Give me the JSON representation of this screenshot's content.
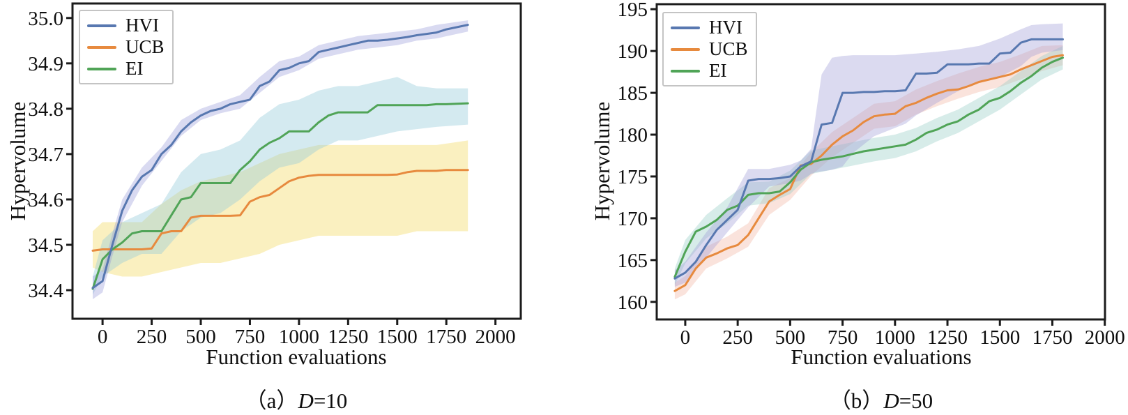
{
  "chart_data": [
    {
      "id": "a",
      "type": "line",
      "xlabel": "Function evaluations",
      "ylabel": "Hypervolume",
      "caption": {
        "prefix": "（a）",
        "variable": "D",
        "suffix": "=10"
      },
      "legend_position": "upper left",
      "grid": false,
      "xlim": [
        -153,
        2129
      ],
      "ylim": [
        34.337,
        35.032
      ],
      "xticks": {
        "values": [
          0,
          250,
          500,
          750,
          1000,
          1250,
          1500,
          1750,
          2000
        ],
        "labels": [
          "0",
          "250",
          "500",
          "750",
          "1000",
          "1250",
          "1500",
          "1750",
          "2000"
        ]
      },
      "yticks": {
        "values": [
          34.4,
          34.5,
          34.6,
          34.7,
          34.8,
          34.9,
          35.0
        ],
        "labels": [
          "34.4",
          "34.5",
          "34.6",
          "34.7",
          "34.8",
          "34.9",
          "35.0"
        ]
      },
      "x": [
        -50,
        0,
        50,
        100,
        150,
        200,
        250,
        300,
        350,
        400,
        450,
        500,
        550,
        600,
        650,
        700,
        750,
        800,
        850,
        900,
        950,
        1000,
        1050,
        1100,
        1150,
        1200,
        1250,
        1300,
        1350,
        1400,
        1450,
        1500,
        1550,
        1600,
        1650,
        1700,
        1750,
        1860
      ],
      "series": [
        {
          "name": "HVI",
          "color": "#5878b0",
          "band_color": "rgba(145,150,216,0.35)",
          "y": [
            34.405,
            34.42,
            34.5,
            34.575,
            34.62,
            34.65,
            34.665,
            34.7,
            34.72,
            34.75,
            34.77,
            34.785,
            34.795,
            34.8,
            34.81,
            34.815,
            34.82,
            34.85,
            34.86,
            34.885,
            34.89,
            34.9,
            34.905,
            34.925,
            34.93,
            34.935,
            34.94,
            34.945,
            34.95,
            34.95,
            34.952,
            34.955,
            34.958,
            34.962,
            34.965,
            34.968,
            34.975,
            34.985
          ],
          "band": {
            "x": [
              -50,
              0,
              50,
              100,
              200,
              300,
              400,
              500,
              600,
              700,
              800,
              900,
              1000,
              1100,
              1200,
              1300,
              1400,
              1500,
              1600,
              1700,
              1860
            ],
            "lower": [
              34.38,
              34.395,
              34.475,
              34.55,
              34.63,
              34.685,
              34.74,
              34.775,
              34.79,
              34.8,
              34.835,
              34.87,
              34.885,
              34.91,
              34.92,
              34.93,
              34.935,
              34.94,
              34.95,
              34.955,
              34.97
            ],
            "upper": [
              34.43,
              34.445,
              34.525,
              34.6,
              34.67,
              34.715,
              34.775,
              34.8,
              34.815,
              34.83,
              34.87,
              34.905,
              34.915,
              34.94,
              34.95,
              34.96,
              34.965,
              34.97,
              34.975,
              34.985,
              34.995
            ]
          }
        },
        {
          "name": "UCB",
          "color": "#e78a3e",
          "band_color": "rgba(245,222,115,0.45)",
          "y": [
            34.487,
            34.49,
            34.49,
            34.49,
            34.49,
            34.49,
            34.492,
            34.525,
            34.53,
            34.53,
            34.56,
            34.564,
            34.564,
            34.564,
            34.564,
            34.565,
            34.595,
            34.605,
            34.61,
            34.625,
            34.64,
            34.648,
            34.652,
            34.654,
            34.654,
            34.654,
            34.654,
            34.654,
            34.654,
            34.654,
            34.654,
            34.655,
            34.66,
            34.663,
            34.663,
            34.663,
            34.665,
            34.665
          ],
          "band": {
            "x": [
              -50,
              0,
              100,
              200,
              300,
              400,
              500,
              600,
              700,
              800,
              900,
              1000,
              1100,
              1200,
              1300,
              1400,
              1500,
              1600,
              1700,
              1860
            ],
            "lower": [
              34.45,
              34.44,
              34.43,
              34.43,
              34.44,
              34.45,
              34.46,
              34.46,
              34.47,
              34.48,
              34.5,
              34.51,
              34.52,
              34.52,
              34.52,
              34.52,
              34.52,
              34.53,
              34.53,
              34.53
            ],
            "upper": [
              34.53,
              34.55,
              34.55,
              34.55,
              34.59,
              34.62,
              34.64,
              34.65,
              34.66,
              34.68,
              34.7,
              34.71,
              34.72,
              34.72,
              34.72,
              34.72,
              34.72,
              34.72,
              34.72,
              34.73
            ]
          }
        },
        {
          "name": "EI",
          "color": "#50a457",
          "band_color": "rgba(148,203,218,0.40)",
          "y": [
            34.403,
            34.468,
            34.49,
            34.505,
            34.525,
            34.53,
            34.53,
            34.53,
            34.565,
            34.6,
            34.605,
            34.636,
            34.636,
            34.636,
            34.636,
            34.665,
            34.684,
            34.71,
            34.725,
            34.735,
            34.75,
            34.75,
            34.75,
            34.77,
            34.785,
            34.792,
            34.792,
            34.792,
            34.792,
            34.808,
            34.808,
            34.808,
            34.808,
            34.808,
            34.808,
            34.81,
            34.81,
            34.812
          ],
          "band": {
            "x": [
              -50,
              0,
              100,
              200,
              300,
              400,
              500,
              600,
              700,
              800,
              900,
              1000,
              1100,
              1200,
              1300,
              1400,
              1500,
              1600,
              1700,
              1860
            ],
            "lower": [
              34.39,
              34.43,
              34.46,
              34.48,
              34.48,
              34.53,
              34.56,
              34.57,
              34.6,
              34.64,
              34.67,
              34.68,
              34.71,
              34.73,
              34.73,
              34.74,
              34.75,
              34.755,
              34.76,
              34.765
            ],
            "upper": [
              34.43,
              34.51,
              34.55,
              34.57,
              34.59,
              34.66,
              34.7,
              34.71,
              34.73,
              34.78,
              34.81,
              34.82,
              34.84,
              34.85,
              34.85,
              34.86,
              34.87,
              34.85,
              34.845,
              34.845
            ]
          }
        }
      ]
    },
    {
      "id": "b",
      "type": "line",
      "xlabel": "Function evaluations",
      "ylabel": "Hypervolume",
      "caption": {
        "prefix": "（b）",
        "variable": "D",
        "suffix": "=50"
      },
      "legend_position": "upper left",
      "grid": false,
      "xlim": [
        -136,
        2001
      ],
      "ylim": [
        157.9,
        195.6
      ],
      "xticks": {
        "values": [
          0,
          250,
          500,
          750,
          1000,
          1250,
          1500,
          1750,
          2000
        ],
        "labels": [
          "0",
          "250",
          "500",
          "750",
          "1000",
          "1250",
          "1500",
          "1750",
          "2000"
        ]
      },
      "yticks": {
        "values": [
          160,
          165,
          170,
          175,
          180,
          185,
          190,
          195
        ],
        "labels": [
          "160",
          "165",
          "170",
          "175",
          "180",
          "185",
          "190",
          "195"
        ]
      },
      "x": [
        -50,
        0,
        50,
        100,
        150,
        200,
        250,
        300,
        350,
        400,
        450,
        500,
        550,
        600,
        650,
        700,
        750,
        800,
        850,
        900,
        950,
        1000,
        1050,
        1100,
        1150,
        1200,
        1250,
        1300,
        1350,
        1400,
        1450,
        1500,
        1550,
        1600,
        1650,
        1700,
        1750,
        1800
      ],
      "series": [
        {
          "name": "HVI",
          "color": "#5878b0",
          "band_color": "rgba(160,158,216,0.38)",
          "y": [
            162.8,
            163.5,
            164.8,
            166.8,
            168.6,
            169.8,
            171.0,
            174.5,
            174.7,
            174.7,
            174.8,
            175.0,
            176.2,
            176.8,
            181.2,
            181.4,
            185.0,
            185.0,
            185.1,
            185.1,
            185.2,
            185.2,
            185.3,
            187.3,
            187.3,
            187.4,
            188.4,
            188.4,
            188.4,
            188.5,
            188.5,
            189.7,
            189.8,
            191.0,
            191.4,
            191.4,
            191.4,
            191.4
          ],
          "band": {
            "x": [
              -50,
              0,
              100,
              200,
              300,
              400,
              500,
              550,
              600,
              620,
              650,
              700,
              750,
              800,
              900,
              1000,
              1050,
              1100,
              1200,
              1300,
              1400,
              1500,
              1600,
              1650,
              1700,
              1800
            ],
            "lower": [
              161.8,
              162.3,
              165.3,
              168.3,
              171.3,
              173.8,
              174.2,
              174.5,
              175.3,
              175.5,
              175.6,
              175.8,
              176.2,
              177.8,
              179.8,
              180.8,
              181.3,
              182.3,
              183.8,
              185.2,
              186.2,
              186.9,
              188.2,
              189.3,
              189.8,
              190.1
            ],
            "upper": [
              163.8,
              164.8,
              168.3,
              171.3,
              175.9,
              175.9,
              176.4,
              176.9,
              178.3,
              182.0,
              187.2,
              189.2,
              189.4,
              189.5,
              189.5,
              189.5,
              189.6,
              189.7,
              189.9,
              190.2,
              190.6,
              191.5,
              192.6,
              193.1,
              193.2,
              193.3
            ]
          }
        },
        {
          "name": "UCB",
          "color": "#e78a3e",
          "band_color": "rgba(240,170,150,0.33)",
          "y": [
            161.3,
            162.0,
            164.0,
            165.3,
            165.8,
            166.4,
            166.8,
            168.0,
            170.0,
            172.0,
            172.8,
            173.5,
            176.3,
            176.5,
            177.5,
            178.8,
            179.8,
            180.5,
            181.5,
            182.2,
            182.4,
            182.5,
            183.4,
            183.8,
            184.4,
            184.9,
            185.3,
            185.4,
            185.8,
            186.3,
            186.6,
            186.9,
            187.2,
            187.8,
            188.3,
            188.8,
            189.3,
            189.5
          ],
          "band": {
            "x": [
              -50,
              0,
              100,
              200,
              300,
              400,
              500,
              600,
              700,
              800,
              900,
              1000,
              1100,
              1200,
              1300,
              1400,
              1500,
              1600,
              1700,
              1800
            ],
            "lower": [
              160.3,
              160.9,
              164.0,
              165.2,
              166.6,
              170.4,
              172.2,
              175.1,
              177.3,
              179.0,
              180.7,
              181.0,
              182.4,
              183.4,
              184.3,
              185.1,
              185.7,
              186.6,
              187.6,
              188.3
            ],
            "upper": [
              162.3,
              163.1,
              166.6,
              167.8,
              169.4,
              173.6,
              174.8,
              177.9,
              180.3,
              182.0,
              183.7,
              184.0,
              185.4,
              186.4,
              187.3,
              188.1,
              188.7,
              189.6,
              190.6,
              190.7
            ]
          }
        },
        {
          "name": "EI",
          "color": "#50a457",
          "band_color": "rgba(150,206,196,0.38)",
          "y": [
            163.0,
            166.0,
            168.4,
            169.0,
            169.8,
            171.0,
            171.5,
            172.8,
            173.0,
            173.0,
            173.2,
            174.3,
            175.8,
            176.7,
            177.0,
            177.2,
            177.4,
            177.7,
            178.0,
            178.2,
            178.4,
            178.6,
            178.8,
            179.4,
            180.2,
            180.6,
            181.2,
            181.6,
            182.4,
            183.0,
            184.0,
            184.4,
            185.2,
            186.2,
            187.0,
            188.0,
            188.7,
            189.2
          ],
          "band": {
            "x": [
              -50,
              0,
              100,
              200,
              300,
              400,
              500,
              600,
              700,
              800,
              900,
              1000,
              1100,
              1200,
              1300,
              1400,
              1500,
              1600,
              1700,
              1800
            ],
            "lower": [
              162.0,
              164.6,
              167.6,
              169.4,
              171.5,
              171.8,
              172.9,
              175.3,
              175.8,
              176.3,
              176.8,
              177.2,
              178.0,
              179.2,
              180.2,
              181.6,
              183.0,
              184.8,
              186.6,
              187.8
            ],
            "upper": [
              164.0,
              167.4,
              170.4,
              172.4,
              174.3,
              174.4,
              175.7,
              178.1,
              178.6,
              179.1,
              179.6,
              180.0,
              180.8,
              182.0,
              183.0,
              184.4,
              185.8,
              187.6,
              189.4,
              190.6
            ]
          }
        }
      ]
    }
  ]
}
